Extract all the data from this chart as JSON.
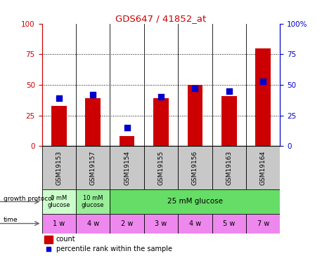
{
  "title": "GDS647 / 41852_at",
  "samples": [
    "GSM19153",
    "GSM19157",
    "GSM19154",
    "GSM19155",
    "GSM19156",
    "GSM19163",
    "GSM19164"
  ],
  "count_values": [
    33,
    39,
    8,
    39,
    50,
    41,
    80
  ],
  "percentile_values": [
    39,
    42,
    15,
    40,
    47,
    45,
    53
  ],
  "ylim": [
    0,
    100
  ],
  "bar_color": "#cc0000",
  "dot_color": "#0000cc",
  "grid_values": [
    25,
    50,
    75
  ],
  "gp_spans": [
    1,
    1,
    5
  ],
  "gp_colors": [
    "#ccffcc",
    "#99ee99",
    "#66dd66"
  ],
  "gp_labels": [
    "0 mM\nglucose",
    "10 mM\nglucose",
    "25 mM glucose"
  ],
  "time_labels": [
    "1 w",
    "4 w",
    "2 w",
    "3 w",
    "4 w",
    "5 w",
    "7 w"
  ],
  "time_color": "#ee88ee",
  "sample_bg_color": "#c8c8c8",
  "legend_count_color": "#cc0000",
  "legend_pct_color": "#0000cc",
  "title_color": "#cc0000",
  "left_axis_color": "#cc0000",
  "right_axis_color": "#0000cc"
}
